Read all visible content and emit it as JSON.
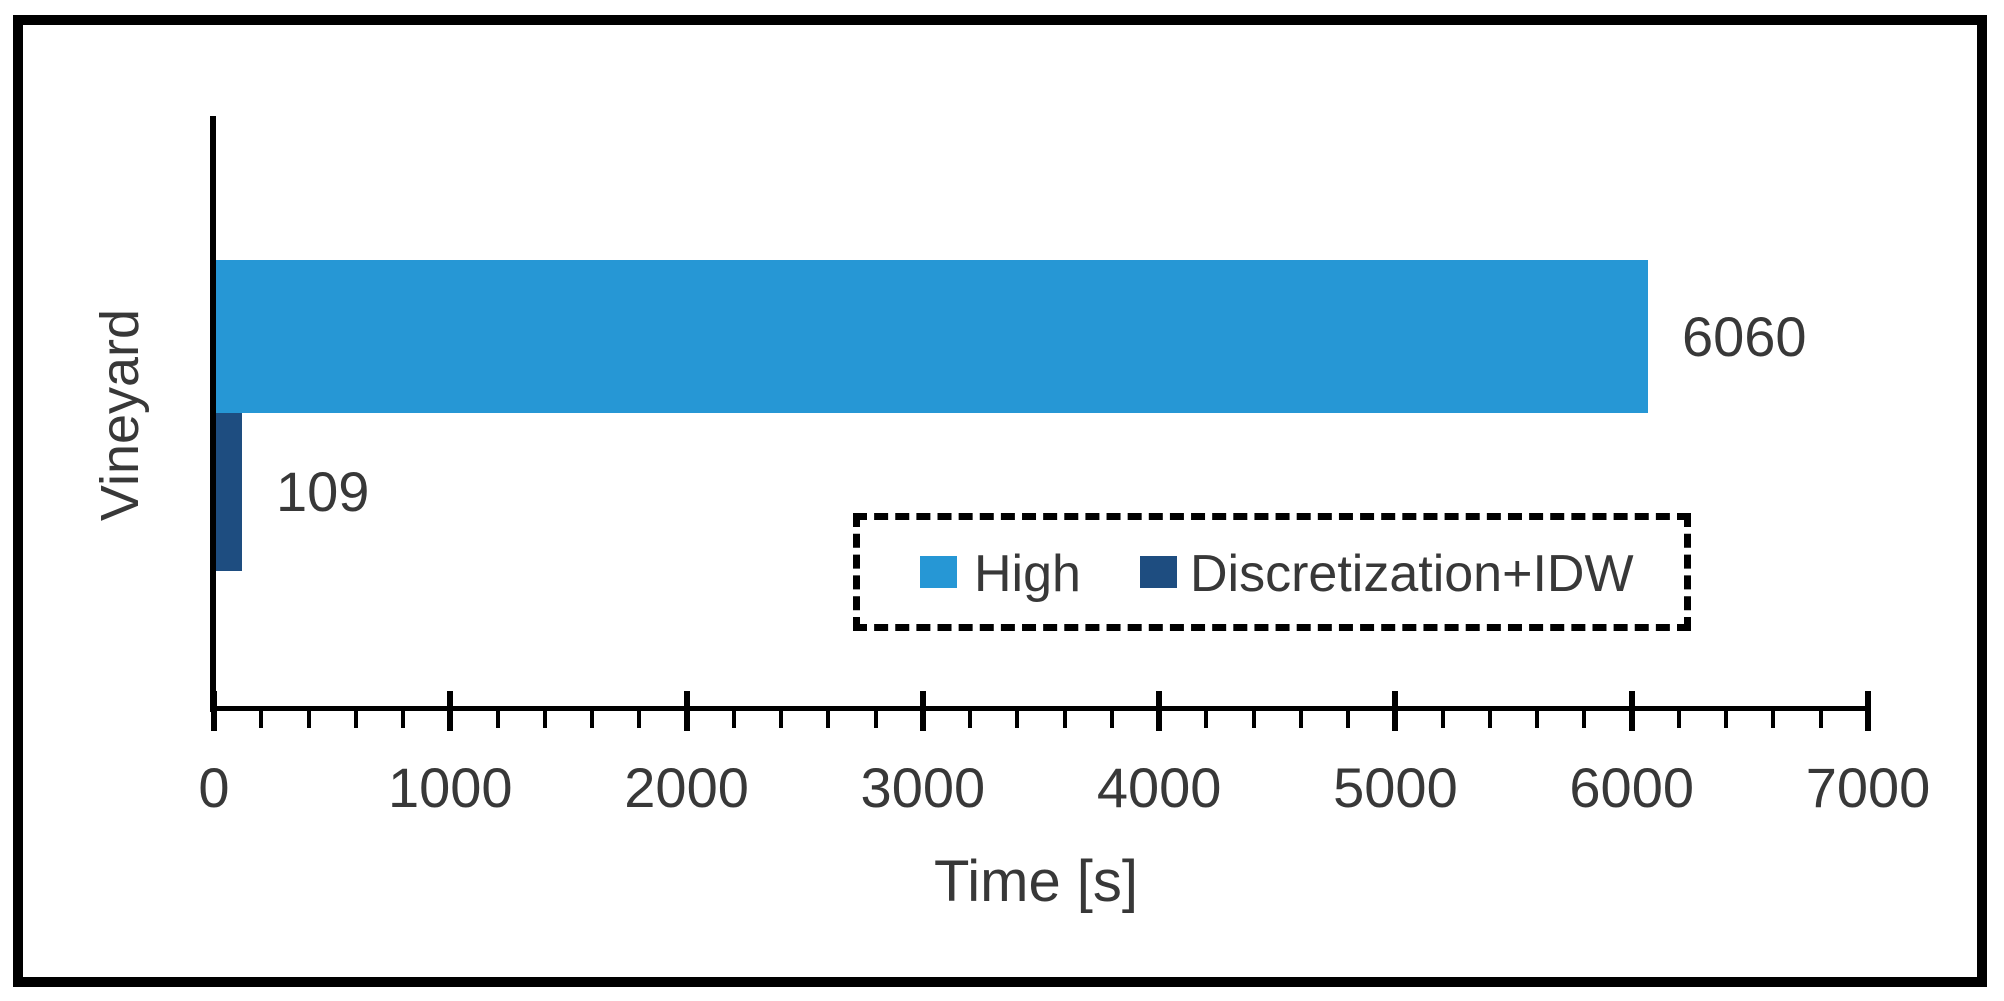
{
  "chart_data": {
    "type": "bar",
    "orientation": "horizontal",
    "title": "",
    "categories": [
      "Vineyard"
    ],
    "series": [
      {
        "name": "High",
        "color": "#2697D5",
        "values": [
          6060
        ]
      },
      {
        "name": "Discretization+IDW",
        "color": "#1E4D80",
        "values": [
          109
        ]
      }
    ],
    "data_labels": [
      "6060",
      "109"
    ],
    "xlabel": "Time [s]",
    "ylabel": "",
    "xlim": [
      0,
      7000
    ],
    "x_major_tick_interval": 1000,
    "x_minor_tick_interval": 200,
    "x_tick_labels": [
      "0",
      "1000",
      "2000",
      "3000",
      "4000",
      "5000",
      "6000",
      "7000"
    ],
    "grid": false,
    "legend": {
      "position": "inside-plot-lower-right",
      "border_style": "dashed",
      "entries": [
        "High",
        "Discretization+IDW"
      ]
    },
    "axis_color": "#000000",
    "text_color": "#383838",
    "frame_color": "#000000"
  }
}
